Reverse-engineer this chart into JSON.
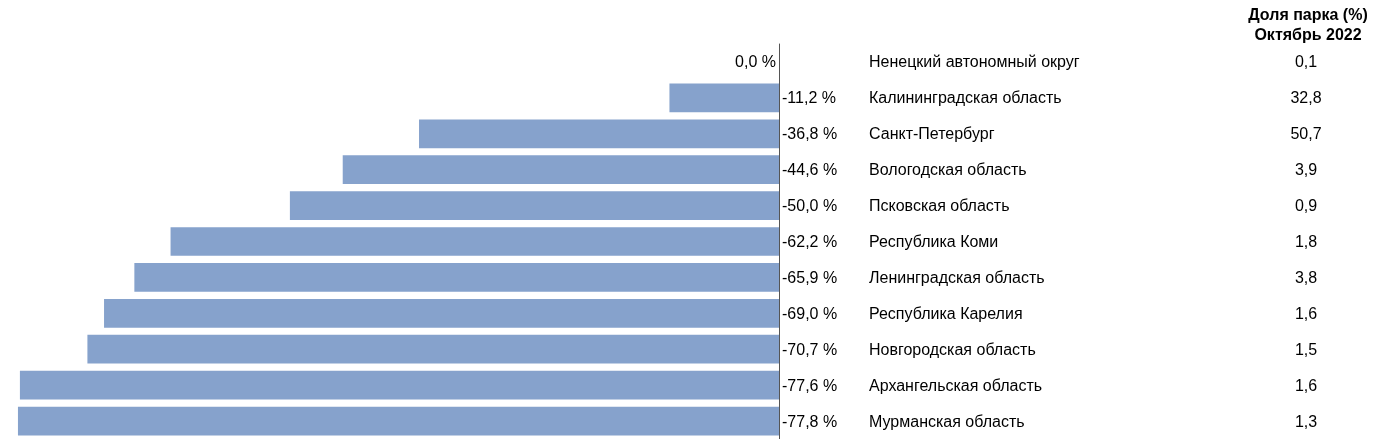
{
  "chart_data": {
    "type": "bar",
    "orientation": "horizontal",
    "categories": [
      "Ненецкий автономный округ",
      "Калининградская область",
      "Санкт-Петербург",
      "Вологодская область",
      "Псковская область",
      "Республика Коми",
      "Ленинградская область",
      "Республика Карелия",
      "Новгородская область",
      "Архангельская область",
      "Мурманская область"
    ],
    "values": [
      0.0,
      -11.2,
      -36.8,
      -44.6,
      -50.0,
      -62.2,
      -65.9,
      -69.0,
      -70.7,
      -77.6,
      -77.8
    ],
    "value_labels": [
      "0,0 %",
      "-11,2 %",
      "-36,8 %",
      "-44,6 %",
      "-50,0 %",
      "-62,2 %",
      "-65,9 %",
      "-69,0 %",
      "-70,7 %",
      "-77,6 %",
      "-77,8 %"
    ],
    "color": "#86a2cc",
    "xlim": [
      -78,
      0
    ],
    "annotations": [
      "Доля парка (%)\nОктябрь 2022",
      "0,1",
      "32,8",
      "50,7",
      "3,9",
      "0,9",
      "1,8",
      "3,8",
      "1,6",
      "1,5",
      "1,6",
      "1,3"
    ]
  }
}
